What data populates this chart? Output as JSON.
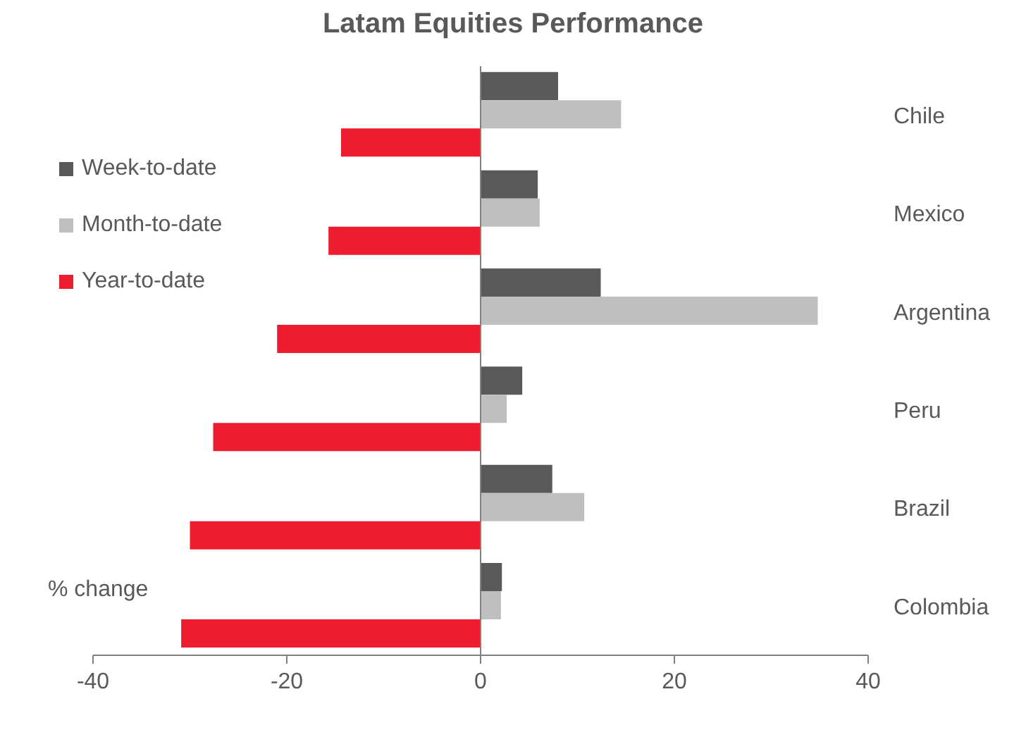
{
  "chart_data": {
    "type": "bar",
    "orientation": "horizontal",
    "title": "Latam Equities Performance",
    "annotations": [
      "% change"
    ],
    "categories": [
      "Chile",
      "Mexico",
      "Argentina",
      "Peru",
      "Brazil",
      "Colombia"
    ],
    "series": [
      {
        "name": "Week-to-date",
        "color": "#595959",
        "values": [
          8.0,
          5.9,
          12.4,
          4.3,
          7.4,
          2.2
        ]
      },
      {
        "name": "Month-to-date",
        "color": "#bfbfbf",
        "values": [
          14.5,
          6.1,
          34.8,
          2.7,
          10.7,
          2.1
        ]
      },
      {
        "name": "Year-to-date",
        "color": "#ed1c2e",
        "values": [
          -14.4,
          -15.7,
          -21.0,
          -27.6,
          -30.0,
          -30.9
        ]
      }
    ],
    "xlim": [
      -40,
      40
    ],
    "xticks": [
      -40,
      -20,
      0,
      20,
      40
    ],
    "legend": "left"
  }
}
